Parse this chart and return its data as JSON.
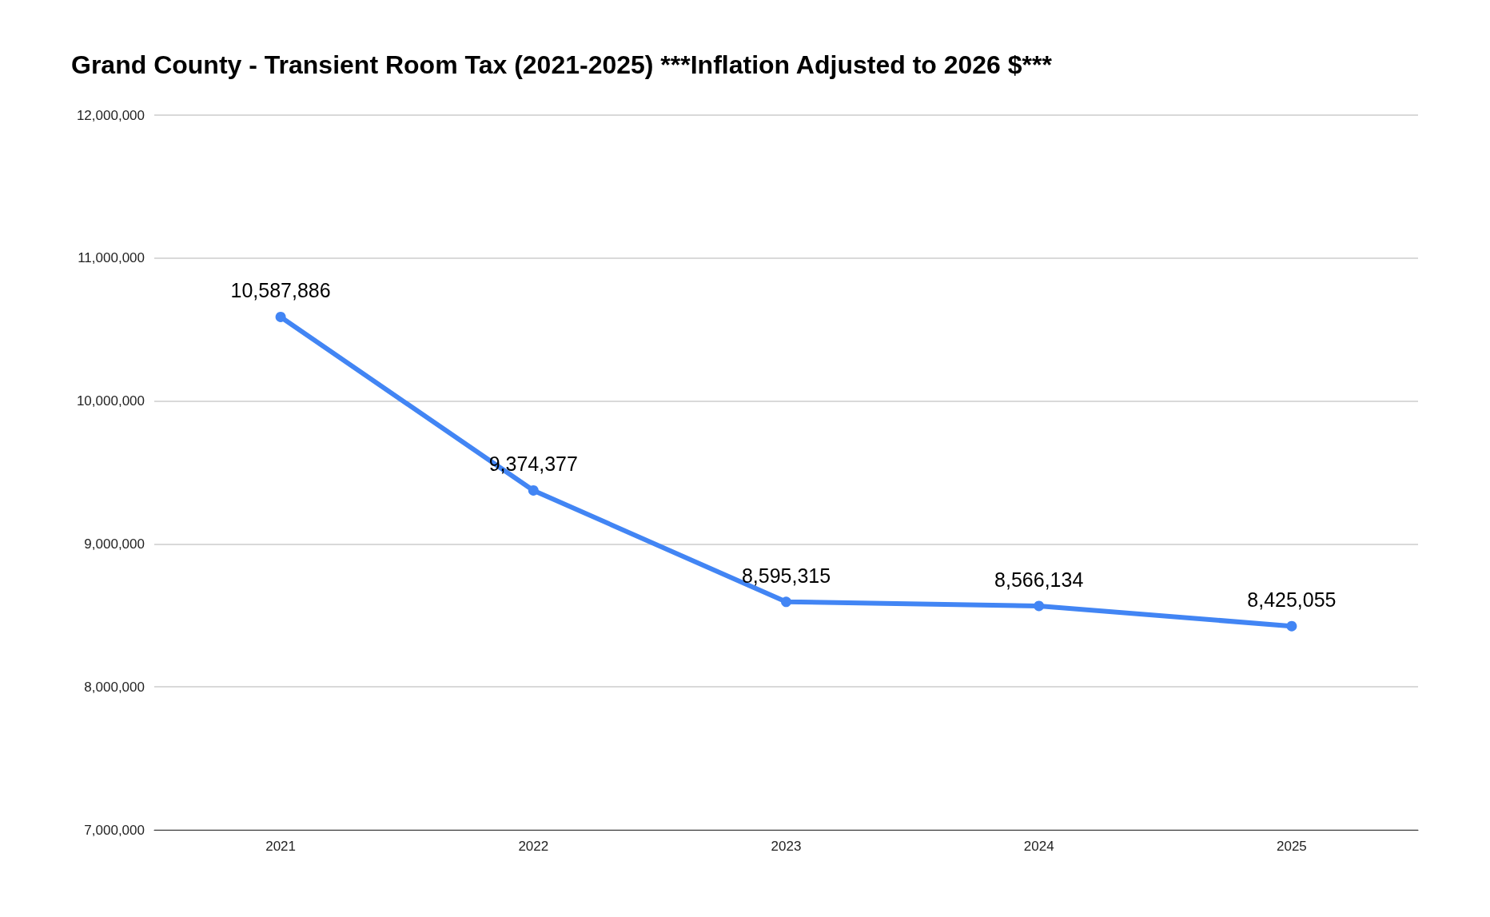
{
  "chart_data": {
    "type": "line",
    "title": "Grand County - Transient Room Tax (2021-2025) ***Inflation Adjusted to 2026 $***",
    "categories": [
      "2021",
      "2022",
      "2023",
      "2024",
      "2025"
    ],
    "series": [
      {
        "color": "#4285f4",
        "values": [
          10587886,
          9374377,
          8595315,
          8566134,
          8425055
        ],
        "value_labels": [
          "10,587,886",
          "9,374,377",
          "8,595,315",
          "8,566,134",
          "8,425,055"
        ]
      }
    ],
    "ylim": [
      7000000,
      12000000
    ],
    "yticks": [
      {
        "value": 7000000,
        "label": "7,000,000"
      },
      {
        "value": 8000000,
        "label": "8,000,000"
      },
      {
        "value": 9000000,
        "label": "9,000,000"
      },
      {
        "value": 10000000,
        "label": "10,000,000"
      },
      {
        "value": 11000000,
        "label": "11,000,000"
      },
      {
        "value": 12000000,
        "label": "12,000,000"
      }
    ],
    "grid": "y",
    "marker": "circle",
    "line_style": "solid"
  }
}
